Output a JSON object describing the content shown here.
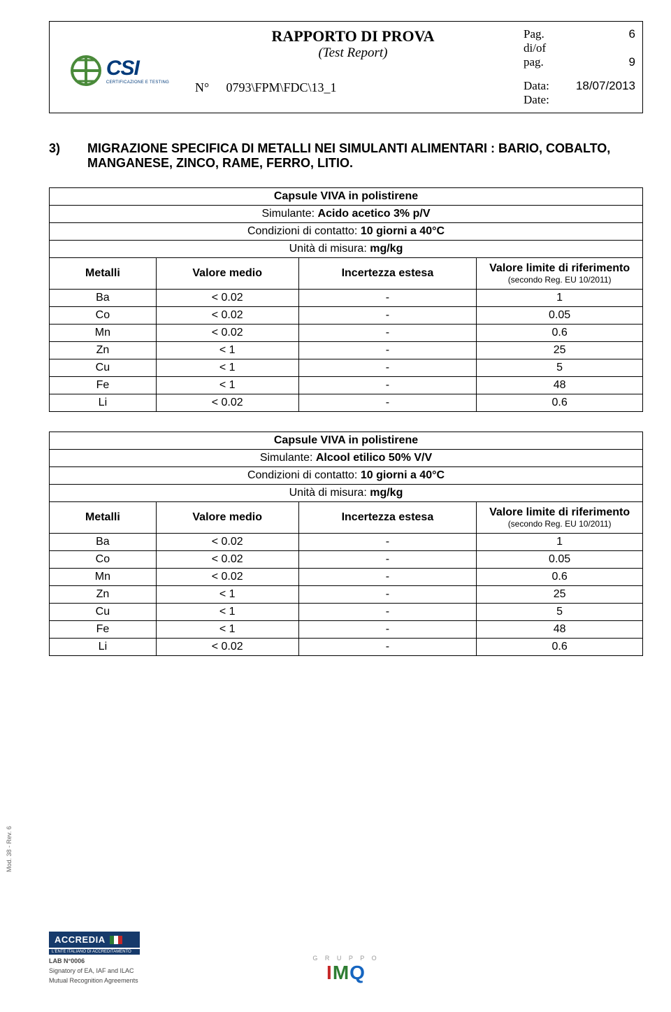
{
  "header": {
    "title": "RAPPORTO DI PROVA",
    "subtitle": "(Test Report)",
    "page_label": "Pag.",
    "page_of_label": "di/of",
    "page_label2": "pag.",
    "page_num": "6",
    "page_total": "9",
    "report_no_label": "N°",
    "report_no": "0793\\FPM\\FDC\\13_1",
    "date_label": "Data:",
    "date_label_en": "Date:",
    "date": "18/07/2013",
    "logo_text": "CSI",
    "logo_subtext": "CERTIFICAZIONE E TESTING"
  },
  "section": {
    "num": "3)",
    "title": "MIGRAZIONE SPECIFICA DI METALLI NEI SIMULANTI ALIMENTARI : BARIO, COBALTO, MANGANESE, ZINCO, RAME, FERRO, LITIO."
  },
  "common": {
    "sample_line": "Capsule VIVA in polistirene",
    "conditions_label": "Condizioni di contatto:",
    "conditions_value": "10 giorni a 40°C",
    "unit_label": "Unità di misura:",
    "unit_value": "mg/kg",
    "col_metalli": "Metalli",
    "col_valore_medio": "Valore medio",
    "col_incertezza": "Incertezza estesa",
    "col_limite": "Valore limite di riferimento",
    "col_limite_sub": "(secondo Reg. EU 10/2011)",
    "simulante_label": "Simulante:"
  },
  "table1": {
    "simulante": "Acido acetico 3% p/V",
    "rows": [
      {
        "m": "Ba",
        "v": "< 0.02",
        "i": "-",
        "l": "1"
      },
      {
        "m": "Co",
        "v": "< 0.02",
        "i": "-",
        "l": "0.05"
      },
      {
        "m": "Mn",
        "v": "< 0.02",
        "i": "-",
        "l": "0.6"
      },
      {
        "m": "Zn",
        "v": "< 1",
        "i": "-",
        "l": "25"
      },
      {
        "m": "Cu",
        "v": "< 1",
        "i": "-",
        "l": "5"
      },
      {
        "m": "Fe",
        "v": "< 1",
        "i": "-",
        "l": "48"
      },
      {
        "m": "Li",
        "v": "< 0.02",
        "i": "-",
        "l": "0.6"
      }
    ]
  },
  "table2": {
    "simulante": "Alcool etilico 50% V/V",
    "rows": [
      {
        "m": "Ba",
        "v": "< 0.02",
        "i": "-",
        "l": "1"
      },
      {
        "m": "Co",
        "v": "< 0.02",
        "i": "-",
        "l": "0.05"
      },
      {
        "m": "Mn",
        "v": "< 0.02",
        "i": "-",
        "l": "0.6"
      },
      {
        "m": "Zn",
        "v": "< 1",
        "i": "-",
        "l": "25"
      },
      {
        "m": "Cu",
        "v": "< 1",
        "i": "-",
        "l": "5"
      },
      {
        "m": "Fe",
        "v": "< 1",
        "i": "-",
        "l": "48"
      },
      {
        "m": "Li",
        "v": "< 0.02",
        "i": "-",
        "l": "0.6"
      }
    ]
  },
  "footer": {
    "accredia": "ACCREDIA",
    "accredia_sub": "L'ENTE ITALIANO DI ACCREDITAMENTO",
    "lab_line1": "LAB N°0006",
    "lab_line2": "Signatory of EA, IAF and ILAC",
    "lab_line3": "Mutual Recognition Agreements",
    "imq_top": "G R U P P O",
    "imq_i": "I",
    "imq_m": "M",
    "imq_q": "Q",
    "mod": "Mod. 38 - Rev. 6"
  },
  "colors": {
    "border": "#000000",
    "text": "#000000",
    "accredia_bg": "#163a6b",
    "imq_red": "#c62828",
    "imq_green": "#2e7d32",
    "imq_blue": "#1565c0",
    "logo_green": "#4a8a3a",
    "logo_blue": "#003a7a"
  }
}
